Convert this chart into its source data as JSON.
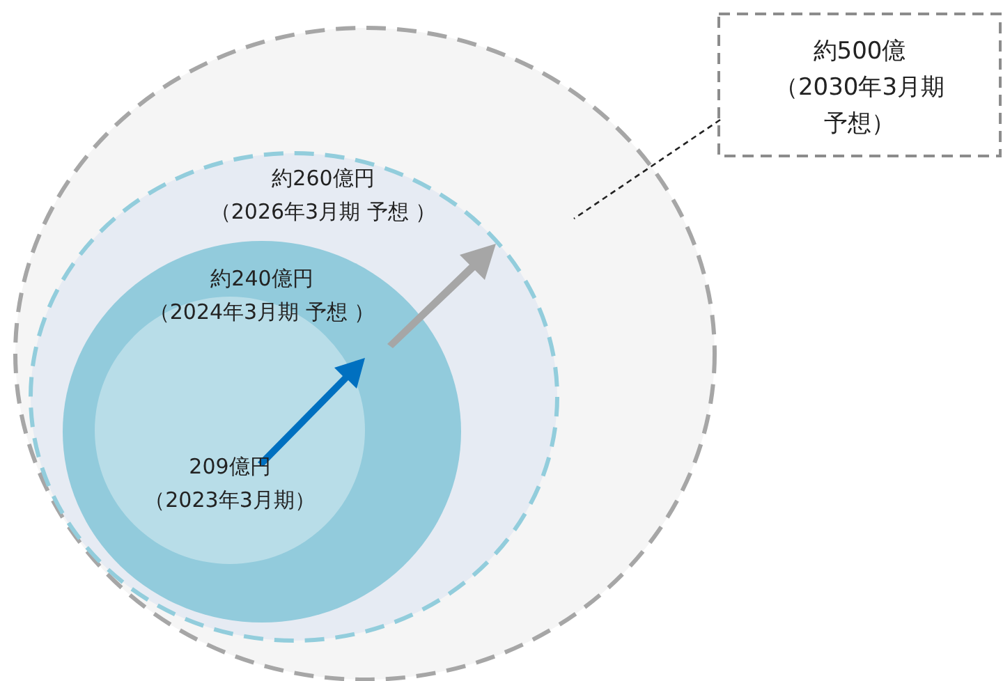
{
  "chart_data": {
    "type": "other",
    "categories": [
      "（2023年3月期）",
      "（2024年3月期 予想 ）",
      "（2026年3月期 予想 ）",
      "（2030年3月期予想）"
    ],
    "values": [
      209,
      240,
      260,
      500
    ],
    "value_labels": [
      "209億円",
      "約240億円",
      "約260億円",
      "約500億"
    ],
    "colors": [
      "#b8dde8",
      "#92cbdc",
      "#e6ebf3",
      "#f5f5f5"
    ]
  }
}
